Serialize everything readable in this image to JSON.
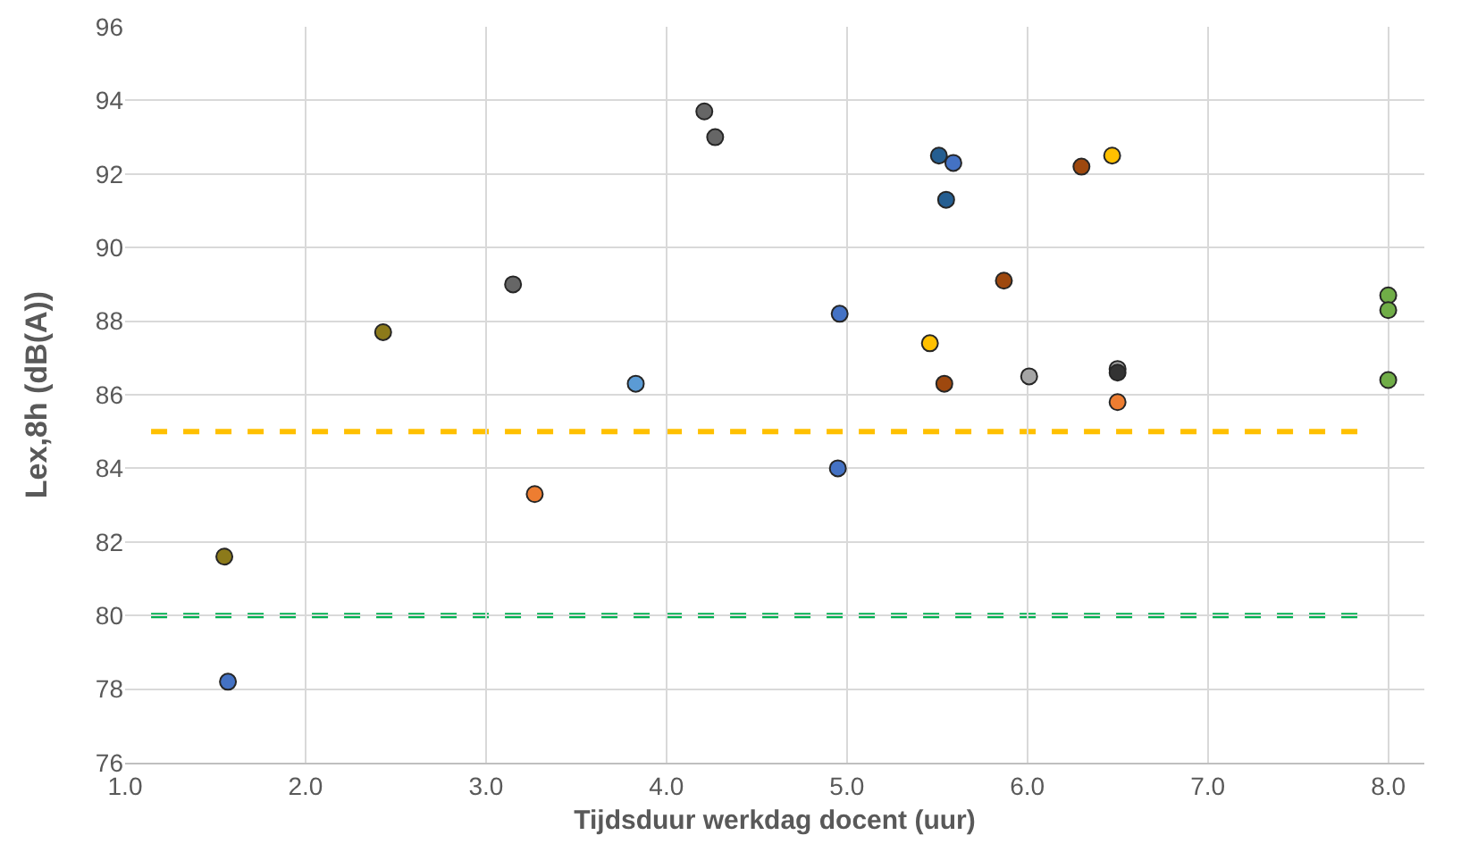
{
  "chart_data": {
    "type": "scatter",
    "xlabel": "Tijdsduur werkdag docent (uur)",
    "ylabel": "Lex,8h (dB(A))",
    "x": [
      1.55,
      1.57,
      2.43,
      3.15,
      3.27,
      3.83,
      4.21,
      4.27,
      4.96,
      4.95,
      5.46,
      5.51,
      5.59,
      5.55,
      5.54,
      5.87,
      6.01,
      6.3,
      6.47,
      6.5,
      6.5,
      6.5,
      8.0,
      8.0,
      8.0
    ],
    "values": [
      81.6,
      78.2,
      87.7,
      89.0,
      83.3,
      86.3,
      93.7,
      93.0,
      88.2,
      84.0,
      87.4,
      92.5,
      92.3,
      91.3,
      86.3,
      89.1,
      86.5,
      92.2,
      92.5,
      86.7,
      86.6,
      85.8,
      88.7,
      88.3,
      86.4
    ],
    "colors": [
      "#8c7a1a",
      "#4472c4",
      "#8c7a1a",
      "#666666",
      "#ed7d31",
      "#5b9bd5",
      "#666666",
      "#666666",
      "#4472c4",
      "#4472c4",
      "#ffc000",
      "#255e91",
      "#4472c4",
      "#255e91",
      "#9e480e",
      "#9e480e",
      "#a5a5a5",
      "#9e480e",
      "#ffc000",
      "#a5a5a5",
      "#333333",
      "#ed7d31",
      "#70ad47",
      "#70ad47",
      "#70ad47"
    ],
    "xlim": [
      1.0,
      8.2
    ],
    "xticks": [
      {
        "value": 1,
        "label": "1.0"
      },
      {
        "value": 2,
        "label": "2.0"
      },
      {
        "value": 3,
        "label": "3.0"
      },
      {
        "value": 4,
        "label": "4.0"
      },
      {
        "value": 5,
        "label": "5.0"
      },
      {
        "value": 6,
        "label": "6.0"
      },
      {
        "value": 7,
        "label": "7.0"
      },
      {
        "value": 8,
        "label": "8.0"
      }
    ],
    "ylim": [
      76,
      96
    ],
    "yticks": [
      76,
      78,
      80,
      82,
      84,
      86,
      88,
      90,
      92,
      94,
      96
    ],
    "ref_lines": [
      {
        "axis": "y",
        "value": 85,
        "color": "#ffc000",
        "line_style": "dashed"
      },
      {
        "axis": "y",
        "value": 80,
        "color": "#00b050",
        "line_style": "dashed"
      }
    ],
    "grid": true,
    "marker": "circle"
  }
}
